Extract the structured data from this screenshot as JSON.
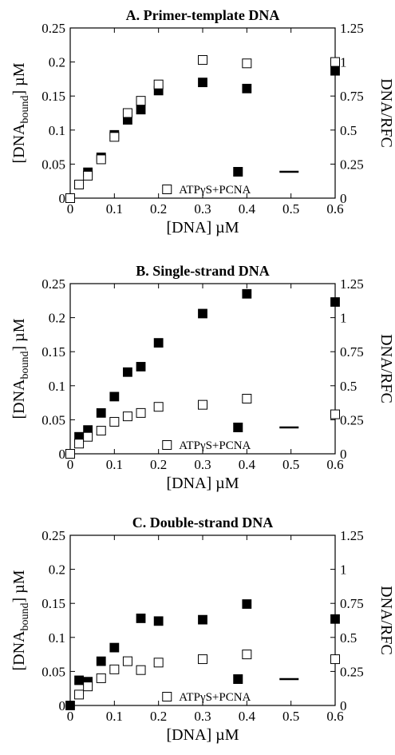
{
  "chart_data": [
    {
      "type": "scatter",
      "title": "A. Primer-template DNA",
      "xlabel": "[DNA] µM",
      "ylabel": "[DNAbound] µM",
      "ylabel_main": "[DNA",
      "ylabel_sub": "bound",
      "ylabel_end": "] µM",
      "y2label": "DNA/RFC",
      "xlim": [
        0,
        0.6
      ],
      "ylim": [
        0,
        0.25
      ],
      "y2lim": [
        0,
        1.25
      ],
      "xticks": [
        "0",
        "0.1",
        "0.2",
        "0.3",
        "0.4",
        "0.5",
        "0.6"
      ],
      "yticks": [
        "0",
        "0.05",
        "0.1",
        "0.15",
        "0.2",
        "0.25"
      ],
      "y2ticks": [
        "0",
        "0.25",
        "0.5",
        "0.75",
        "1",
        "1.25"
      ],
      "legend": {
        "position": "bottom-right",
        "filled_label": "",
        "open_label": "ATPγS+PCNA"
      },
      "series": [
        {
          "marker": "filled-square",
          "points": [
            [
              0,
              0
            ],
            [
              0.02,
              0.02
            ],
            [
              0.04,
              0.038
            ],
            [
              0.07,
              0.06
            ],
            [
              0.1,
              0.093
            ],
            [
              0.13,
              0.115
            ],
            [
              0.16,
              0.13
            ],
            [
              0.2,
              0.158
            ],
            [
              0.3,
              0.17
            ],
            [
              0.4,
              0.161
            ],
            [
              0.6,
              0.187
            ]
          ]
        },
        {
          "marker": "open-square",
          "points": [
            [
              0,
              0
            ],
            [
              0.02,
              0.02
            ],
            [
              0.04,
              0.033
            ],
            [
              0.07,
              0.057
            ],
            [
              0.1,
              0.09
            ],
            [
              0.13,
              0.125
            ],
            [
              0.16,
              0.143
            ],
            [
              0.2,
              0.167
            ],
            [
              0.3,
              0.203
            ],
            [
              0.4,
              0.198
            ],
            [
              0.6,
              0.2
            ]
          ]
        }
      ]
    },
    {
      "type": "scatter",
      "title": "B. Single-strand DNA",
      "xlabel": "[DNA] µM",
      "ylabel": "[DNAbound] µM",
      "ylabel_main": "[DNA",
      "ylabel_sub": "bound",
      "ylabel_end": "] µM",
      "y2label": "DNA/RFC",
      "xlim": [
        0,
        0.6
      ],
      "ylim": [
        0,
        0.25
      ],
      "y2lim": [
        0,
        1.25
      ],
      "xticks": [
        "0",
        "0.1",
        "0.2",
        "0.3",
        "0.4",
        "0.5",
        "0.6"
      ],
      "yticks": [
        "0",
        "0.05",
        "0.1",
        "0.15",
        "0.2",
        "0.25"
      ],
      "y2ticks": [
        "0",
        "0.25",
        "0.5",
        "0.75",
        "1",
        "1.25"
      ],
      "legend": {
        "position": "bottom-right",
        "filled_label": "",
        "open_label": "ATPγS+PCNA"
      },
      "series": [
        {
          "marker": "filled-square",
          "points": [
            [
              0,
              0
            ],
            [
              0.02,
              0.025
            ],
            [
              0.04,
              0.035
            ],
            [
              0.07,
              0.06
            ],
            [
              0.1,
              0.084
            ],
            [
              0.13,
              0.12
            ],
            [
              0.16,
              0.128
            ],
            [
              0.2,
              0.163
            ],
            [
              0.3,
              0.206
            ],
            [
              0.4,
              0.235
            ],
            [
              0.6,
              0.223
            ]
          ]
        },
        {
          "marker": "open-square",
          "points": [
            [
              0,
              0
            ],
            [
              0.02,
              0.015
            ],
            [
              0.04,
              0.025
            ],
            [
              0.07,
              0.034
            ],
            [
              0.1,
              0.047
            ],
            [
              0.13,
              0.055
            ],
            [
              0.16,
              0.06
            ],
            [
              0.2,
              0.069
            ],
            [
              0.3,
              0.072
            ],
            [
              0.4,
              0.081
            ],
            [
              0.6,
              0.058
            ]
          ]
        }
      ]
    },
    {
      "type": "scatter",
      "title": "C. Double-strand DNA",
      "xlabel": "[DNA] µM",
      "ylabel": "[DNAbound] µM",
      "ylabel_main": "[DNA",
      "ylabel_sub": "bound",
      "ylabel_end": "] µM",
      "y2label": "DNA/RFC",
      "xlim": [
        0,
        0.6
      ],
      "ylim": [
        0,
        0.25
      ],
      "y2lim": [
        0,
        1.25
      ],
      "xticks": [
        "0",
        "0.1",
        "0.2",
        "0.3",
        "0.4",
        "0.5",
        "0.6"
      ],
      "yticks": [
        "0",
        "0.05",
        "0.1",
        "0.15",
        "0.2",
        "0.25"
      ],
      "y2ticks": [
        "0",
        "0.25",
        "0.5",
        "0.75",
        "1",
        "1.25"
      ],
      "legend": {
        "position": "bottom-right",
        "filled_label": "",
        "open_label": "ATPγS+PCNA"
      },
      "series": [
        {
          "marker": "filled-square",
          "points": [
            [
              0,
              0
            ],
            [
              0.02,
              0.037
            ],
            [
              0.04,
              0.035
            ],
            [
              0.07,
              0.065
            ],
            [
              0.1,
              0.085
            ],
            [
              0.16,
              0.128
            ],
            [
              0.2,
              0.124
            ],
            [
              0.3,
              0.126
            ],
            [
              0.4,
              0.149
            ],
            [
              0.6,
              0.127
            ]
          ]
        },
        {
          "marker": "open-square",
          "points": [
            [
              0.02,
              0.016
            ],
            [
              0.04,
              0.028
            ],
            [
              0.07,
              0.04
            ],
            [
              0.1,
              0.053
            ],
            [
              0.13,
              0.065
            ],
            [
              0.16,
              0.052
            ],
            [
              0.2,
              0.063
            ],
            [
              0.3,
              0.068
            ],
            [
              0.4,
              0.075
            ],
            [
              0.6,
              0.068
            ]
          ]
        }
      ]
    }
  ]
}
